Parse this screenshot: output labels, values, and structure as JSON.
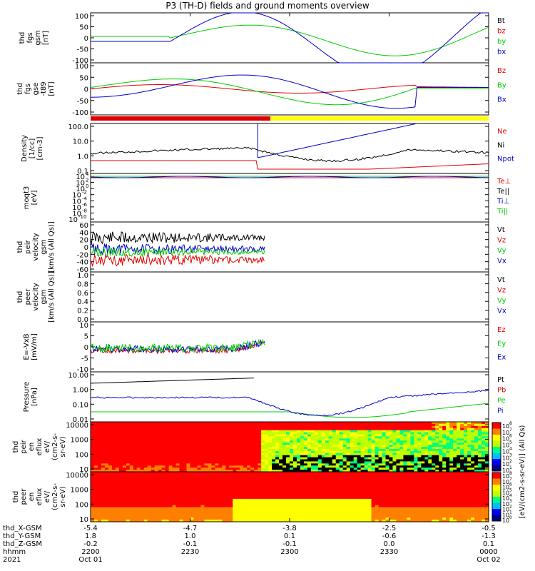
{
  "title": "P3 (TH-D) fields and ground moments overview",
  "colors": {
    "black": "#000000",
    "red": "#e00000",
    "green": "#00cc00",
    "blue": "#0000cc"
  },
  "chart_data": [
    {
      "type": "line",
      "panel": "fgs_gsm",
      "ylabel": [
        "thd",
        "fgs",
        "gsm",
        "[nT]"
      ],
      "ylim": [
        -100,
        100
      ],
      "yticks": [
        "100",
        "50",
        "0",
        "-50",
        "-100"
      ],
      "legend": [
        {
          "text": "Bt",
          "color": "black"
        },
        {
          "text": "bz",
          "color": "red"
        },
        {
          "text": "by",
          "color": "green"
        },
        {
          "text": "bx",
          "color": "blue"
        }
      ]
    },
    {
      "type": "line",
      "panel": "fgs_gse",
      "ylabel": [
        "thd",
        "fgs",
        "gse",
        "-t89",
        "[nT]"
      ],
      "ylim": [
        -100,
        100
      ],
      "yticks": [
        "100",
        "50",
        "0",
        "-50",
        "-100"
      ],
      "legend": [
        {
          "text": "Bz",
          "color": "red"
        },
        {
          "text": "By",
          "color": "green"
        },
        {
          "text": "Bx",
          "color": "blue"
        }
      ]
    },
    {
      "type": "line",
      "panel": "density",
      "ylabel": [
        "Density",
        "[1/cc]",
        "[cm-3]"
      ],
      "scale": "log",
      "yticks": [
        "100.0",
        "10.0",
        "1.0",
        "0.1"
      ],
      "legend": [
        {
          "text": "Ne",
          "color": "red"
        },
        {
          "text": "Ni",
          "color": "black"
        },
        {
          "text": "Npot",
          "color": "blue"
        }
      ]
    },
    {
      "type": "line",
      "panel": "temperature",
      "ylabel": [
        "moqt3",
        "[eV]"
      ],
      "scale": "log",
      "yticks": [
        "10^4",
        "10^2",
        "10^0",
        "10^-2",
        "10^-4",
        "10^-6",
        "10^-8",
        "10^-10"
      ],
      "legend": [
        {
          "text": "Te⊥",
          "color": "red"
        },
        {
          "text": "Te||",
          "color": "black"
        },
        {
          "text": "Ti⊥",
          "color": "blue"
        },
        {
          "text": "Ti||",
          "color": "green"
        }
      ]
    },
    {
      "type": "line",
      "panel": "peir_velocity",
      "ylabel": [
        "thd",
        "peir",
        "velocity",
        "gsm",
        "[km/s (All Qs)]"
      ],
      "ylim": [
        -60,
        60
      ],
      "yticks": [
        "60",
        "40",
        "20",
        "0",
        "-20",
        "-40",
        "-60"
      ],
      "legend": [
        {
          "text": "Vt",
          "color": "black"
        },
        {
          "text": "Vz",
          "color": "red"
        },
        {
          "text": "Vy",
          "color": "green"
        },
        {
          "text": "Vx",
          "color": "blue"
        }
      ]
    },
    {
      "type": "line",
      "panel": "peer_velocity",
      "ylabel": [
        "thd",
        "peer",
        "velocity",
        "gsm",
        "[km/s (All Qs)]"
      ],
      "ylim": [
        0,
        1
      ],
      "yticks": [
        "1.0",
        "0.8",
        "0.6",
        "0.4",
        "0.2",
        "0.0"
      ],
      "legend": [
        {
          "text": "Vt",
          "color": "black"
        },
        {
          "text": "Vz",
          "color": "red"
        },
        {
          "text": "Vy",
          "color": "green"
        },
        {
          "text": "Vx",
          "color": "blue"
        }
      ]
    },
    {
      "type": "line",
      "panel": "efield",
      "ylabel": [
        "E=-VxB",
        "[mV/m]"
      ],
      "ylim": [
        -10,
        10
      ],
      "yticks": [
        "10",
        "5",
        "0",
        "-5",
        "-10"
      ],
      "legend": [
        {
          "text": "Ez",
          "color": "red"
        },
        {
          "text": "Ey",
          "color": "green"
        },
        {
          "text": "Ex",
          "color": "blue"
        }
      ]
    },
    {
      "type": "line",
      "panel": "pressure",
      "ylabel": [
        "Pressure",
        "[nPa]"
      ],
      "scale": "log",
      "yticks": [
        "10.00",
        "1.00",
        "0.10",
        "0.01"
      ],
      "legend": [
        {
          "text": "Pt",
          "color": "black"
        },
        {
          "text": "Pb",
          "color": "red"
        },
        {
          "text": "Pe",
          "color": "green"
        },
        {
          "text": "Pi",
          "color": "blue"
        }
      ]
    },
    {
      "type": "heatmap",
      "panel": "peir_en_eflux",
      "ylabel": [
        "thd",
        "peir",
        "en",
        "eflux",
        "eV/",
        "(cm2-s-",
        "sr-eV)"
      ],
      "scale": "log",
      "yticks": [
        "10000",
        "1000",
        "100",
        "10"
      ]
    },
    {
      "type": "heatmap",
      "panel": "peer_en_eflux",
      "ylabel": [
        "thd",
        "peer",
        "en",
        "eflux",
        "eV/",
        "(cm2-s-",
        "sr-eV)"
      ],
      "scale": "log",
      "yticks": [
        "10000",
        "1000",
        "100",
        "10"
      ]
    }
  ],
  "colorbar": {
    "label": "[eV/(cm2-s-sr-eV)] (All Qs)",
    "top_ticks": [
      "10^8",
      "10^7",
      "10^6",
      "10^5",
      "10^4",
      "10^3",
      "10^2",
      "10^1"
    ],
    "bottom_ticks": [
      "10^8",
      "10^7",
      "10^6",
      "10^5",
      "10^4",
      "10^3",
      "10^2",
      "10^1",
      "10^0"
    ]
  },
  "xaxis": {
    "row_labels": [
      "thd_X-GSM",
      "thd_Y-GSM",
      "thd_Z-GSM",
      "hhmm",
      "2021"
    ],
    "ticks": [
      {
        "x": "-5.4",
        "y": "1.8",
        "z": "-0.2",
        "hhmm": "2200",
        "date": "Oct 01"
      },
      {
        "x": "-4.7",
        "y": "1.0",
        "z": "-0.1",
        "hhmm": "2230",
        "date": ""
      },
      {
        "x": "-3.8",
        "y": "0.1",
        "z": "-0.1",
        "hhmm": "2300",
        "date": ""
      },
      {
        "x": "-2.5",
        "y": "-0.6",
        "z": "0.0",
        "hhmm": "2330",
        "date": ""
      },
      {
        "x": "-0.5",
        "y": "-1.3",
        "z": "0.1",
        "hhmm": "0000",
        "date": "Oct 02"
      }
    ]
  }
}
